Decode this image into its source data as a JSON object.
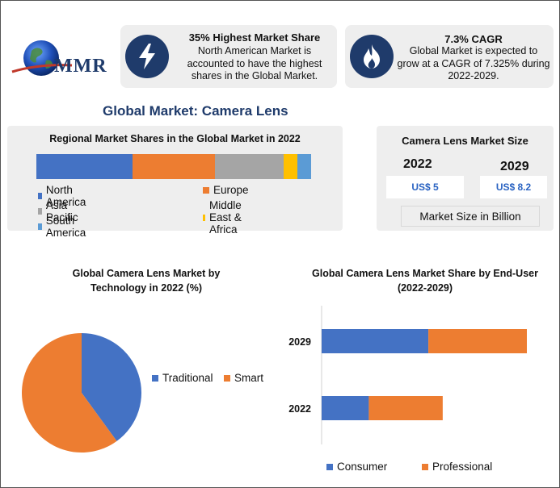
{
  "brand": {
    "name": "MMR"
  },
  "cards": [
    {
      "icon": "lightning-bolt-icon",
      "title": "35% Highest Market Share",
      "lines": [
        "North American Market is",
        "accounted to have the highest",
        "shares in the Global Market."
      ]
    },
    {
      "icon": "flame-icon",
      "title": "7.3% CAGR",
      "lines": [
        "Global Market is expected to",
        "grow at a CAGR of 7.325% during",
        "2022-2029."
      ]
    }
  ],
  "page_title": "Global Market: Camera Lens",
  "size_panel": {
    "title": "Camera Lens Market Size",
    "year_a": "2022",
    "value_a": "US$ 5",
    "year_b": "2029",
    "value_b": "US$ 8.2",
    "unit_label": "Market Size in Billion"
  },
  "colors": {
    "north_america": "#4472c4",
    "europe": "#ed7d31",
    "asia_pacific": "#a5a5a5",
    "mea": "#ffc000",
    "south_america": "#5b9bd5",
    "navy": "#1f3b6b"
  },
  "chart_data": [
    {
      "type": "bar",
      "stacked": true,
      "orientation": "horizontal",
      "title": "Regional Market Shares in the Global Market in 2022",
      "series": [
        {
          "name": "North America",
          "values": [
            35
          ],
          "color": "#4472c4"
        },
        {
          "name": "Europe",
          "values": [
            30
          ],
          "color": "#ed7d31"
        },
        {
          "name": "Asia Pacific",
          "values": [
            25
          ],
          "color": "#a5a5a5"
        },
        {
          "name": "Middle East & Africa",
          "values": [
            5
          ],
          "color": "#ffc000"
        },
        {
          "name": "South America",
          "values": [
            5
          ],
          "color": "#5b9bd5"
        }
      ],
      "legend_position": "bottom"
    },
    {
      "type": "pie",
      "title": "Global Camera Lens Market by Technology in 2022 (%)",
      "categories": [
        "Traditional",
        "Smart"
      ],
      "values": [
        40,
        60
      ],
      "colors": [
        "#4472c4",
        "#ed7d31"
      ],
      "legend_position": "right"
    },
    {
      "type": "bar",
      "stacked": true,
      "orientation": "horizontal",
      "title": "Global Camera Lens Market Share by End-User (2022-2029)",
      "categories": [
        "2029",
        "2022"
      ],
      "series": [
        {
          "name": "Consumer",
          "values": [
            5.2,
            2.3
          ],
          "color": "#4472c4"
        },
        {
          "name": "Professional",
          "values": [
            4.8,
            3.6
          ],
          "color": "#ed7d31"
        }
      ],
      "legend_position": "bottom"
    }
  ]
}
